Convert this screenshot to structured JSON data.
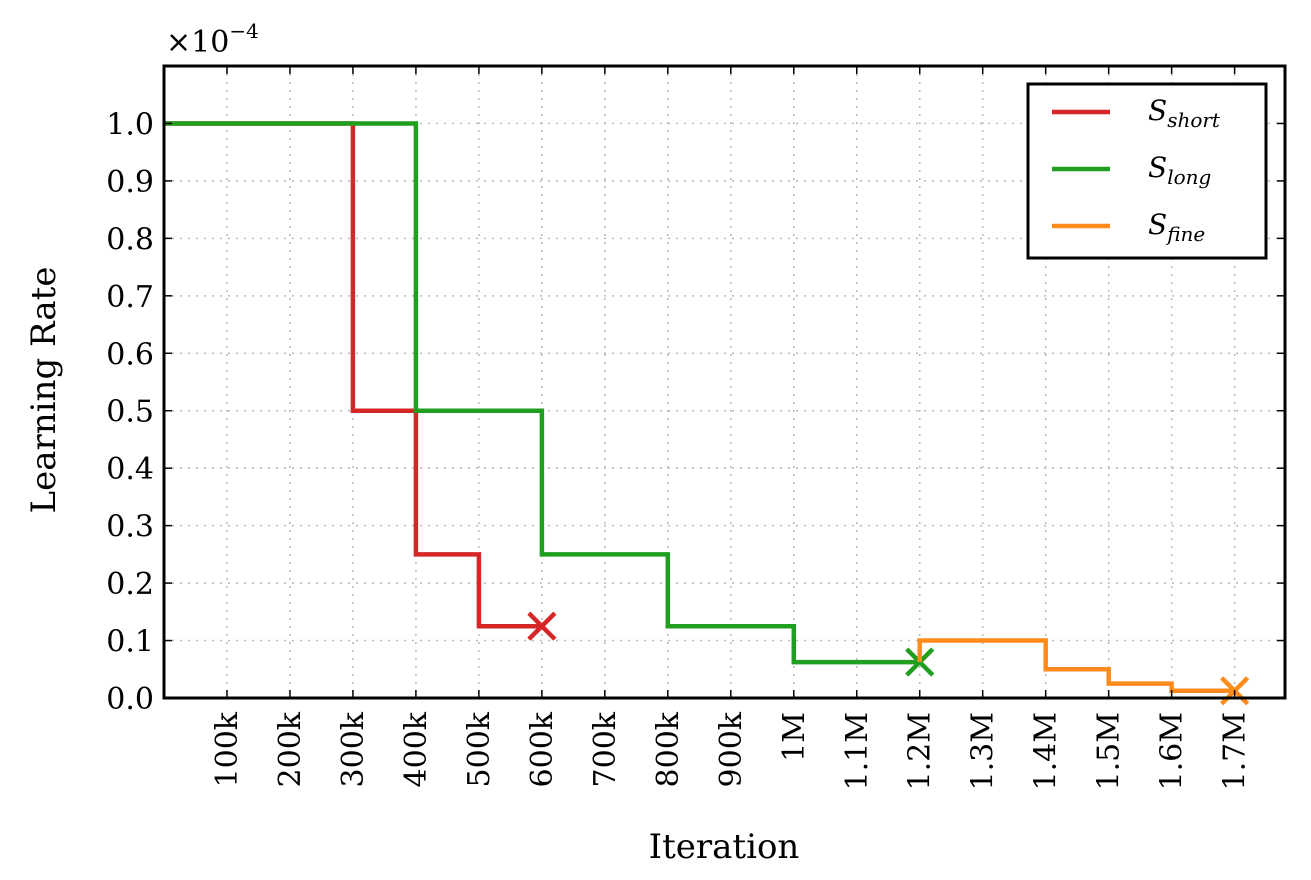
{
  "chart_data": {
    "type": "line",
    "xlabel": "Iteration",
    "ylabel": "Learning Rate",
    "y_multiplier": {
      "base": "×10",
      "exponent": "−4"
    },
    "xlim": [
      0,
      1780000
    ],
    "ylim": [
      0,
      1.1
    ],
    "grid": true,
    "legend_position": "top-right",
    "x_ticks": [
      {
        "value": 100000,
        "label": "100k"
      },
      {
        "value": 200000,
        "label": "200k"
      },
      {
        "value": 300000,
        "label": "300k"
      },
      {
        "value": 400000,
        "label": "400k"
      },
      {
        "value": 500000,
        "label": "500k"
      },
      {
        "value": 600000,
        "label": "600k"
      },
      {
        "value": 700000,
        "label": "700k"
      },
      {
        "value": 800000,
        "label": "800k"
      },
      {
        "value": 900000,
        "label": "900k"
      },
      {
        "value": 1000000,
        "label": "1M"
      },
      {
        "value": 1100000,
        "label": "1.1M"
      },
      {
        "value": 1200000,
        "label": "1.2M"
      },
      {
        "value": 1300000,
        "label": "1.3M"
      },
      {
        "value": 1400000,
        "label": "1.4M"
      },
      {
        "value": 1500000,
        "label": "1.5M"
      },
      {
        "value": 1600000,
        "label": "1.6M"
      },
      {
        "value": 1700000,
        "label": "1.7M"
      }
    ],
    "y_ticks": [
      {
        "value": 0.0,
        "label": "0.0"
      },
      {
        "value": 0.1,
        "label": "0.1"
      },
      {
        "value": 0.2,
        "label": "0.2"
      },
      {
        "value": 0.3,
        "label": "0.3"
      },
      {
        "value": 0.4,
        "label": "0.4"
      },
      {
        "value": 0.5,
        "label": "0.5"
      },
      {
        "value": 0.6,
        "label": "0.6"
      },
      {
        "value": 0.7,
        "label": "0.7"
      },
      {
        "value": 0.8,
        "label": "0.8"
      },
      {
        "value": 0.9,
        "label": "0.9"
      },
      {
        "value": 1.0,
        "label": "1.0"
      }
    ],
    "series": [
      {
        "name_base": "S",
        "name_sub": "short",
        "color": "#d62728",
        "x": [
          0,
          300000,
          300000,
          400000,
          400000,
          500000,
          500000,
          600000
        ],
        "y": [
          1.0,
          1.0,
          0.5,
          0.5,
          0.25,
          0.25,
          0.125,
          0.125
        ],
        "end_marker": "x"
      },
      {
        "name_base": "S",
        "name_sub": "long",
        "color": "#1f9e1f",
        "x": [
          0,
          400000,
          400000,
          600000,
          600000,
          800000,
          800000,
          1000000,
          1000000,
          1200000
        ],
        "y": [
          1.0,
          1.0,
          0.5,
          0.5,
          0.25,
          0.25,
          0.125,
          0.125,
          0.0625,
          0.0625
        ],
        "end_marker": "x"
      },
      {
        "name_base": "S",
        "name_sub": "fine",
        "color": "#ff8c1a",
        "x": [
          1200000,
          1200000,
          1400000,
          1400000,
          1500000,
          1500000,
          1600000,
          1600000,
          1700000
        ],
        "y": [
          0.0625,
          0.1,
          0.1,
          0.05,
          0.05,
          0.025,
          0.025,
          0.0125,
          0.0125
        ],
        "end_marker": "x"
      }
    ]
  }
}
